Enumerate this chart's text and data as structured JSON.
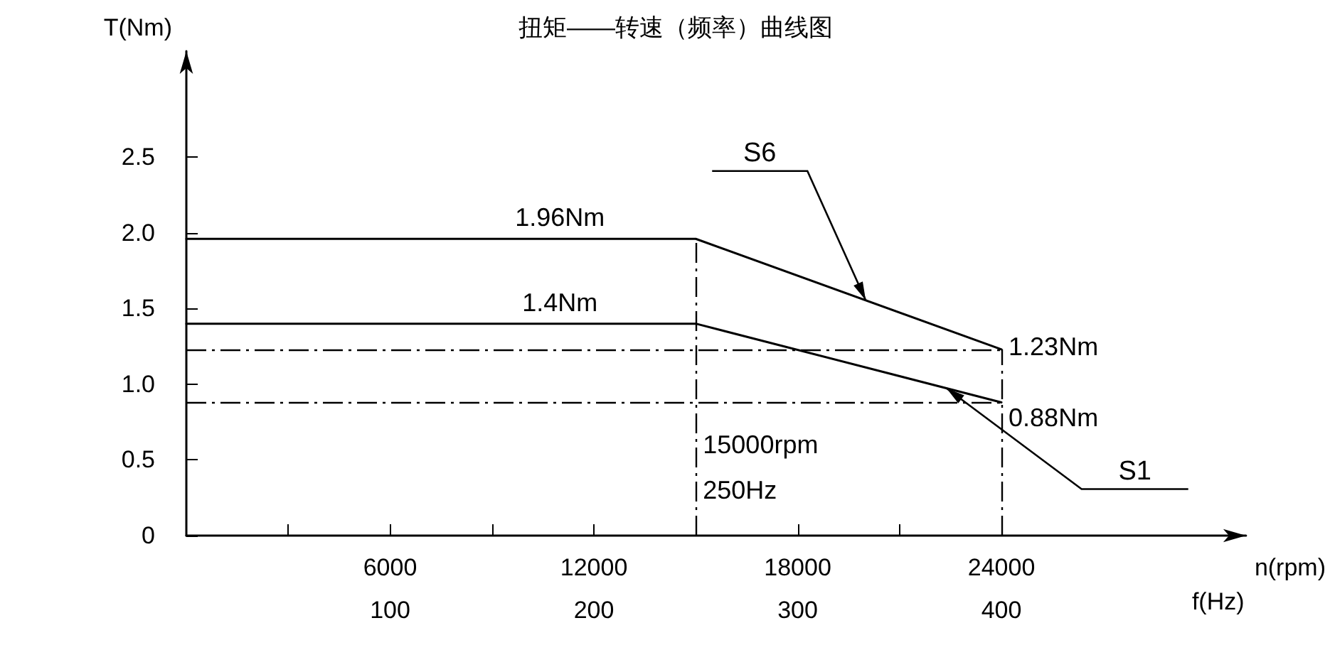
{
  "chart_data": {
    "type": "line",
    "title": "扭矩——转速（频率）曲线图",
    "xlabel": "n(rpm)",
    "x2label": "f(Hz)",
    "ylabel": "T(Nm)",
    "xlim": [
      0,
      31200
    ],
    "xticks": [
      {
        "value": 3000,
        "label": null
      },
      6000,
      {
        "value": 9000,
        "label": null
      },
      12000,
      18000,
      {
        "value": 21000,
        "label": null
      },
      24000
    ],
    "x2lim": [
      0,
      520
    ],
    "x2ticks": [
      100,
      200,
      300,
      400
    ],
    "ylim": [
      0,
      3.2
    ],
    "yticks": [
      0,
      0.5,
      {
        "value": 1,
        "label": "1.0"
      },
      1.5,
      {
        "value": 2,
        "label": "2.0"
      },
      2.5
    ],
    "marker": "none",
    "line_style": "solid",
    "series": [
      {
        "name": "S6",
        "color": "#000000",
        "x": [
          0,
          15000,
          24000
        ],
        "values": [
          1.96,
          1.96,
          1.23
        ]
      },
      {
        "name": "S1",
        "color": "#000000",
        "x": [
          0,
          15000,
          24000
        ],
        "values": [
          1.4,
          1.4,
          0.88
        ]
      }
    ],
    "ref_lines": [
      {
        "axis": "y",
        "value": 1.23,
        "color": "#000000",
        "line_style": "dashdot"
      },
      {
        "axis": "y",
        "value": 0.88,
        "color": "#000000",
        "line_style": "dashdot"
      },
      {
        "axis": "x",
        "value": 15000,
        "color": "#000000",
        "line_style": "dashdot"
      },
      {
        "axis": "x",
        "value": 24000,
        "color": "#000000",
        "line_style": "dashdot"
      }
    ],
    "annotations": [
      {
        "text": "1.96Nm",
        "x": 11000,
        "y": 1.96
      },
      {
        "text": "1.4Nm",
        "x": 11000,
        "y": 1.4
      },
      {
        "text": "1.23Nm",
        "x": 24000,
        "y": 1.25
      },
      {
        "text": "0.88Nm",
        "x": 24000,
        "y": 0.78
      },
      {
        "text": "15000rpm",
        "x": 15000,
        "y": 0.6
      },
      {
        "text": "250Hz",
        "x": 15000,
        "y": 0.3
      }
    ]
  }
}
